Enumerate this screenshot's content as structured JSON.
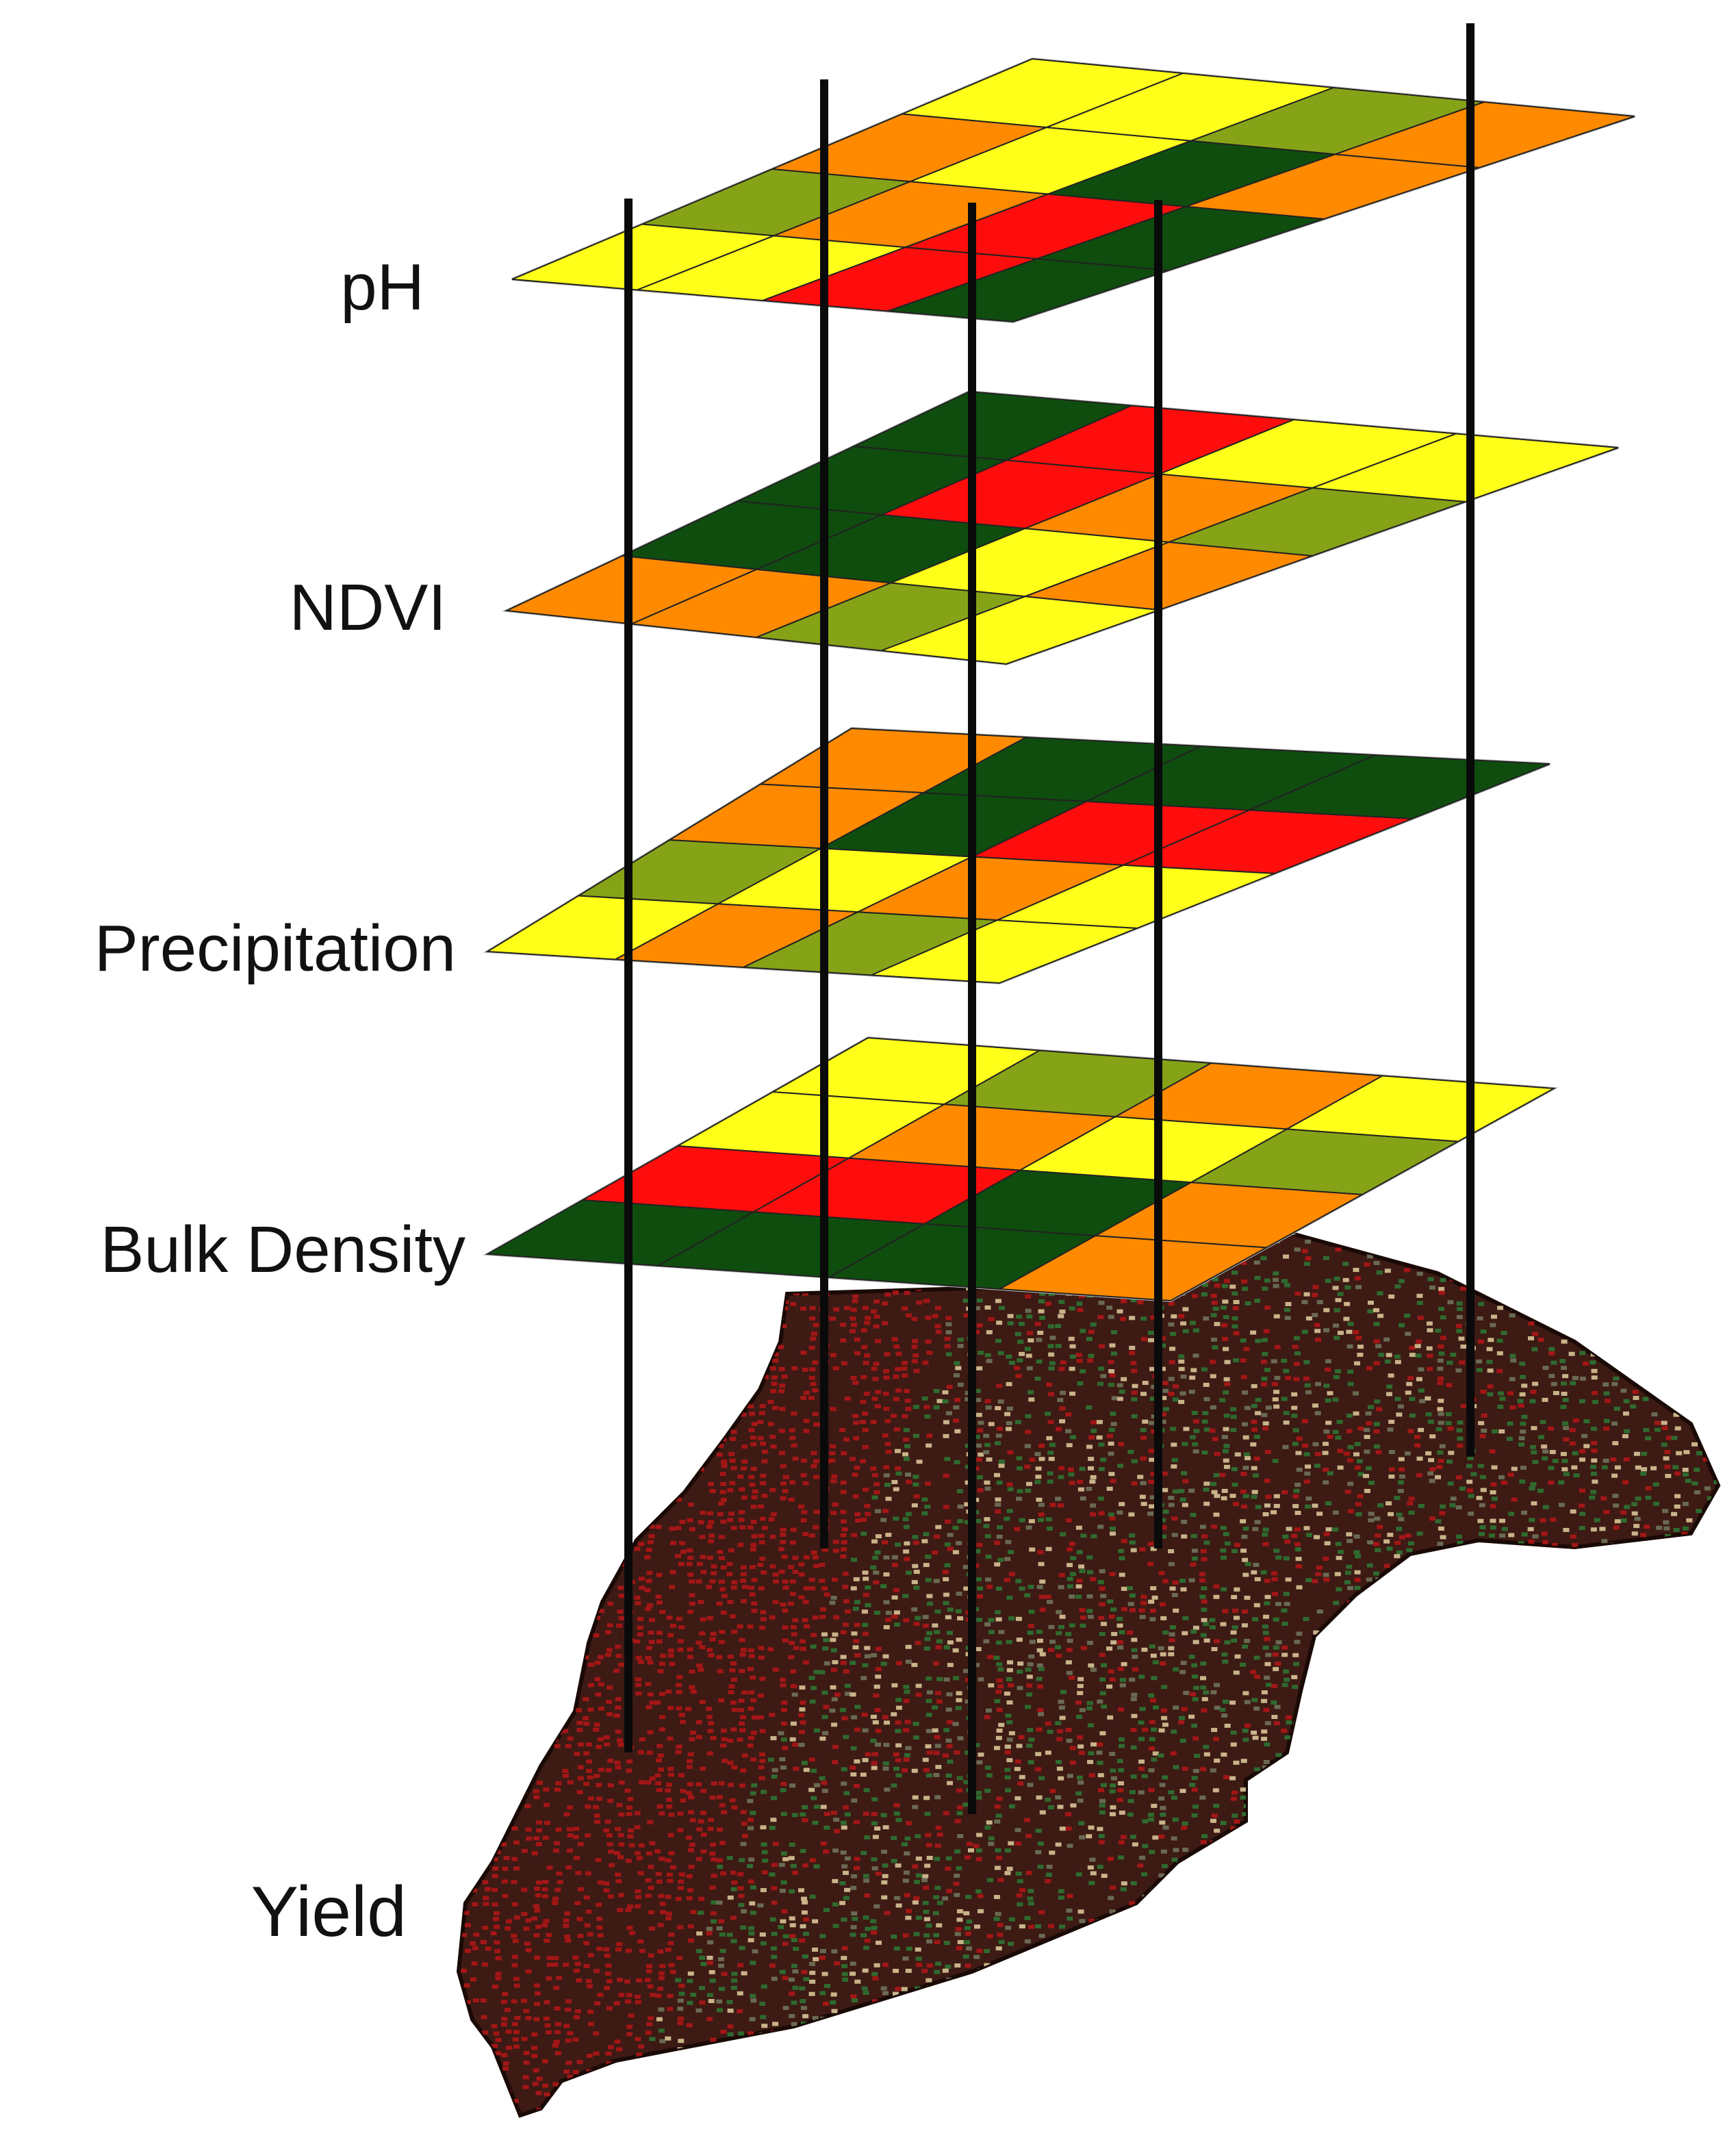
{
  "colors": {
    "dark_green": "#0f4d0f",
    "olive_green": "#86a317",
    "yellow": "#ffff1a",
    "orange": "#ff8a00",
    "red": "#ff0d0d",
    "grid_line": "#222222",
    "pole": "#0a0a0a",
    "yield_dark": "#3d1a14",
    "yield_red": "#a31616",
    "yield_green": "#2f6a2f",
    "yield_tan": "#c9b48a"
  },
  "layers": [
    {
      "label": "pH",
      "grid": [
        [
          "yellow",
          "yellow",
          "olive_green",
          "orange"
        ],
        [
          "orange",
          "yellow",
          "dark_green",
          "orange"
        ],
        [
          "olive_green",
          "orange",
          "red",
          "dark_green"
        ],
        [
          "yellow",
          "yellow",
          "red",
          "dark_green"
        ]
      ]
    },
    {
      "label": "NDVI",
      "grid": [
        [
          "dark_green",
          "red",
          "yellow",
          "yellow"
        ],
        [
          "dark_green",
          "red",
          "orange",
          "olive_green"
        ],
        [
          "dark_green",
          "dark_green",
          "yellow",
          "orange"
        ],
        [
          "orange",
          "orange",
          "olive_green",
          "yellow"
        ]
      ]
    },
    {
      "label": "Precipitation",
      "grid": [
        [
          "orange",
          "dark_green",
          "dark_green",
          "dark_green"
        ],
        [
          "orange",
          "dark_green",
          "red",
          "red"
        ],
        [
          "olive_green",
          "yellow",
          "orange",
          "yellow"
        ],
        [
          "yellow",
          "orange",
          "olive_green",
          "yellow"
        ]
      ]
    },
    {
      "label": "Bulk Density",
      "grid": [
        [
          "yellow",
          "olive_green",
          "orange",
          "yellow"
        ],
        [
          "yellow",
          "orange",
          "yellow",
          "olive_green"
        ],
        [
          "red",
          "red",
          "dark_green",
          "orange"
        ],
        [
          "dark_green",
          "dark_green",
          "dark_green",
          "orange"
        ]
      ]
    }
  ],
  "yield": {
    "label": "Yield"
  }
}
